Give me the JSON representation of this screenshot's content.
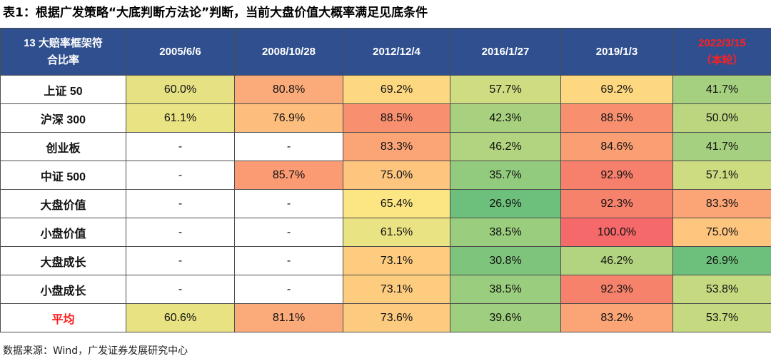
{
  "title": "表1：根据广发策略“大底判断方法论”判断，当前大盘价值大概率满足见底条件",
  "table": {
    "corner_line1": "13 大赔率框架符",
    "corner_line2": "合比率",
    "columns": [
      {
        "label": "2005/6/6"
      },
      {
        "label": "2008/10/28"
      },
      {
        "label": "2012/12/4"
      },
      {
        "label": "2016/1/27"
      },
      {
        "label": "2019/1/3"
      },
      {
        "label": "2022/3/15",
        "sublabel": "（本轮）",
        "highlight": true
      }
    ],
    "rows": [
      {
        "label": "上证 50",
        "cells": [
          {
            "text": "60.0%",
            "color": "#e6e283"
          },
          {
            "text": "80.8%",
            "color": "#fbab7a"
          },
          {
            "text": "69.2%",
            "color": "#fdd880"
          },
          {
            "text": "57.7%",
            "color": "#cfdc81"
          },
          {
            "text": "69.2%",
            "color": "#fdd880"
          },
          {
            "text": "41.7%",
            "color": "#a5d07f"
          }
        ]
      },
      {
        "label": "沪深 300",
        "cells": [
          {
            "text": "61.1%",
            "color": "#e9e383"
          },
          {
            "text": "76.9%",
            "color": "#fdbd7d"
          },
          {
            "text": "88.5%",
            "color": "#f8906f"
          },
          {
            "text": "42.3%",
            "color": "#a7d17f"
          },
          {
            "text": "88.5%",
            "color": "#f8906f"
          },
          {
            "text": "50.0%",
            "color": "#bcd680"
          }
        ]
      },
      {
        "label": "创业板",
        "cells": [
          {
            "text": "-",
            "color": "#ffffff"
          },
          {
            "text": "-",
            "color": "#ffffff"
          },
          {
            "text": "83.3%",
            "color": "#fba476"
          },
          {
            "text": "46.2%",
            "color": "#b2d37f"
          },
          {
            "text": "84.6%",
            "color": "#fa9f74"
          },
          {
            "text": "41.7%",
            "color": "#a5d07f"
          }
        ]
      },
      {
        "label": "中证 500",
        "cells": [
          {
            "text": "-",
            "color": "#ffffff"
          },
          {
            "text": "85.7%",
            "color": "#fa9b73"
          },
          {
            "text": "75.0%",
            "color": "#fdc57e"
          },
          {
            "text": "35.7%",
            "color": "#93cb7e"
          },
          {
            "text": "92.9%",
            "color": "#f7806c"
          },
          {
            "text": "57.1%",
            "color": "#cddb81"
          }
        ]
      },
      {
        "label": "大盘价值",
        "cells": [
          {
            "text": "-",
            "color": "#ffffff"
          },
          {
            "text": "-",
            "color": "#ffffff"
          },
          {
            "text": "65.4%",
            "color": "#fbe683"
          },
          {
            "text": "26.9%",
            "color": "#6dc07b"
          },
          {
            "text": "92.3%",
            "color": "#f7826c"
          },
          {
            "text": "83.3%",
            "color": "#fba476"
          }
        ]
      },
      {
        "label": "小盘价值",
        "cells": [
          {
            "text": "-",
            "color": "#ffffff"
          },
          {
            "text": "-",
            "color": "#ffffff"
          },
          {
            "text": "61.5%",
            "color": "#eae383"
          },
          {
            "text": "38.5%",
            "color": "#9bcd7e"
          },
          {
            "text": "100.0%",
            "color": "#f5696b"
          },
          {
            "text": "75.0%",
            "color": "#fdc57e"
          }
        ]
      },
      {
        "label": "大盘成长",
        "cells": [
          {
            "text": "-",
            "color": "#ffffff"
          },
          {
            "text": "-",
            "color": "#ffffff"
          },
          {
            "text": "73.1%",
            "color": "#fdcc7f"
          },
          {
            "text": "30.8%",
            "color": "#7ec47c"
          },
          {
            "text": "46.2%",
            "color": "#b2d37f"
          },
          {
            "text": "26.9%",
            "color": "#6dc07b"
          }
        ]
      },
      {
        "label": "小盘成长",
        "cells": [
          {
            "text": "-",
            "color": "#ffffff"
          },
          {
            "text": "-",
            "color": "#ffffff"
          },
          {
            "text": "73.1%",
            "color": "#fdcc7f"
          },
          {
            "text": "38.5%",
            "color": "#9bcd7e"
          },
          {
            "text": "92.3%",
            "color": "#f7826c"
          },
          {
            "text": "53.8%",
            "color": "#c5d980"
          }
        ]
      },
      {
        "label": "平均",
        "is_average": true,
        "cells": [
          {
            "text": "60.6%",
            "color": "#e8e283"
          },
          {
            "text": "81.1%",
            "color": "#fbab7a"
          },
          {
            "text": "73.6%",
            "color": "#fdcb7f"
          },
          {
            "text": "39.6%",
            "color": "#9ece7e"
          },
          {
            "text": "83.2%",
            "color": "#fba576"
          },
          {
            "text": "53.7%",
            "color": "#c5d980"
          }
        ]
      }
    ]
  },
  "source": "数据来源：Wind，广发证券发展研究中心",
  "colors": {
    "header_bg": "#2f4f8f",
    "header_text": "#ffffff",
    "highlight_text": "#ff2020",
    "average_label": "#ff1a1a"
  }
}
